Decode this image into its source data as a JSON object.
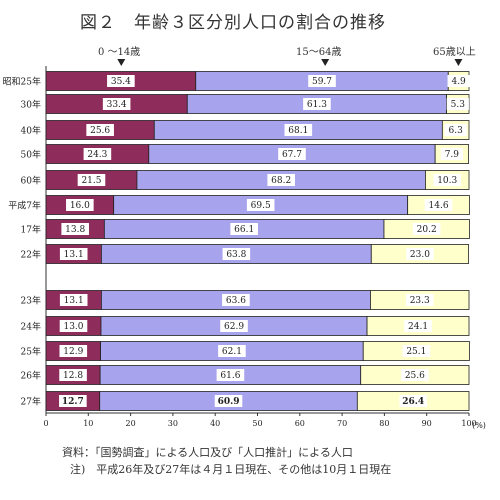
{
  "title": "図２　年齢３区分別人口の割合の推移",
  "group_labels": [
    "0 ～14歳",
    "15～64歳",
    "65歳以上"
  ],
  "source_note": "資料：「国勢調査」による人口及び「人口推計」による人口",
  "note": "注)　平成26年及び27年は４月１日現在、その他は10月１日現在",
  "colors": {
    "young": "#8e2c5c",
    "working": "#a7a3ec",
    "elderly": "#ffffcc"
  },
  "chart_data": {
    "type": "bar",
    "orientation": "horizontal",
    "stacked": true,
    "categories": [
      "昭和25年",
      "30年",
      "40年",
      "50年",
      "60年",
      "平成7年",
      "17年",
      "22年",
      "23年",
      "24年",
      "25年",
      "26年",
      "27年"
    ],
    "series": [
      {
        "name": "0 ～14歳",
        "values": [
          35.4,
          33.4,
          25.6,
          24.3,
          21.5,
          16.0,
          13.8,
          13.1,
          13.1,
          13.0,
          12.9,
          12.8,
          12.7
        ]
      },
      {
        "name": "15～64歳",
        "values": [
          59.7,
          61.3,
          68.1,
          67.7,
          68.2,
          69.5,
          66.1,
          63.8,
          63.6,
          62.9,
          62.1,
          61.6,
          60.9
        ]
      },
      {
        "name": "65歳以上",
        "values": [
          4.9,
          5.3,
          6.3,
          7.9,
          10.3,
          14.6,
          20.2,
          23.0,
          23.3,
          24.1,
          25.1,
          25.6,
          26.4
        ]
      }
    ],
    "value_labels": [
      [
        "35.4",
        "59.7",
        "4.9"
      ],
      [
        "33.4",
        "61.3",
        "5.3"
      ],
      [
        "25.6",
        "68.1",
        "6.3"
      ],
      [
        "24.3",
        "67.7",
        "7.9"
      ],
      [
        "21.5",
        "68.2",
        "10.3"
      ],
      [
        "16.0",
        "69.5",
        "14.6"
      ],
      [
        "13.8",
        "66.1",
        "20.2"
      ],
      [
        "13.1",
        "63.8",
        "23.0"
      ],
      [
        "13.1",
        "63.6",
        "23.3"
      ],
      [
        "13.0",
        "62.9",
        "24.1"
      ],
      [
        "12.9",
        "62.1",
        "25.1"
      ],
      [
        "12.8",
        "61.6",
        "25.6"
      ],
      [
        "12.7",
        "60.9",
        "26.4"
      ]
    ],
    "bold_categories": [
      "27年"
    ],
    "xlim": [
      0,
      100
    ],
    "xticks": [
      "0",
      "10",
      "20",
      "30",
      "40",
      "50",
      "60",
      "70",
      "80",
      "90",
      "100"
    ],
    "xunit": "(%)",
    "grid": false,
    "legend": "top"
  }
}
